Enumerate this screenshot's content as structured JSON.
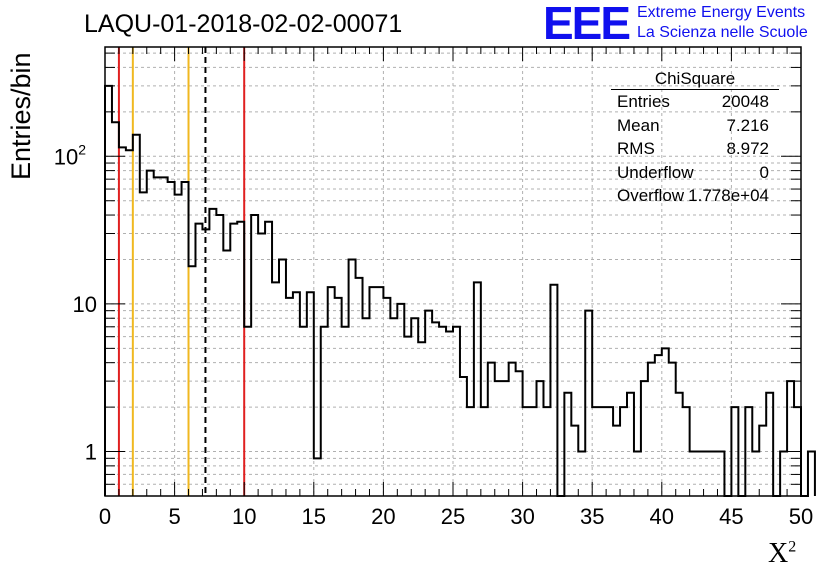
{
  "title": "LAQU-01-2018-02-02-00071",
  "logo": {
    "mark": "EEE",
    "line1": "Extreme Energy Events",
    "line2": "La Scienza nelle Scuole",
    "color": "#1010ee"
  },
  "stats": {
    "title": "ChiSquare",
    "rows": [
      {
        "key": "Entries",
        "value": "20048"
      },
      {
        "key": "Mean",
        "value": "7.216"
      },
      {
        "key": "RMS",
        "value": "8.972"
      },
      {
        "key": "Underflow",
        "value": "0"
      },
      {
        "key": "Overflow",
        "value": "1.778e+04"
      }
    ]
  },
  "chart_data": {
    "type": "histogram",
    "ylabel": "Entries/bin",
    "xlabel": "X",
    "xlabel_sup": "2",
    "xlim": [
      0,
      50
    ],
    "ylim": [
      0.5,
      550
    ],
    "yscale": "log",
    "grid": true,
    "bin_width": 0.5,
    "x_ticks": [
      0,
      5,
      10,
      15,
      20,
      25,
      30,
      35,
      40,
      45,
      50
    ],
    "y_ticks": [
      {
        "value": 1,
        "label": "1"
      },
      {
        "value": 10,
        "label": "10"
      },
      {
        "value": 100,
        "label": "10",
        "sup": "2"
      }
    ],
    "values": [
      300,
      170,
      115,
      110,
      140,
      57,
      80,
      72,
      72,
      67,
      55,
      67,
      18,
      35,
      32,
      44,
      40,
      23,
      35,
      36,
      7,
      40,
      30,
      36,
      14,
      20,
      11,
      12,
      7,
      12,
      0.9,
      7,
      13,
      11,
      7,
      20,
      15,
      8,
      13,
      13,
      11,
      8,
      10,
      6,
      8,
      5.5,
      9,
      7.5,
      7,
      6.5,
      7,
      3.2,
      2,
      14,
      2,
      4,
      3,
      3,
      4,
      3.5,
      2,
      2,
      3,
      2,
      13.5,
      0.5,
      2.5,
      1.5,
      1,
      9,
      2,
      2,
      2,
      1.5,
      2,
      2.5,
      1,
      3,
      4,
      4.5,
      5,
      4,
      2.5,
      2,
      1,
      1,
      1,
      1,
      1,
      0.5,
      2,
      0.5,
      2,
      1,
      1.5,
      2.5,
      0.5,
      1,
      3,
      2,
      0.5,
      1
    ],
    "vlines": [
      {
        "x": 1,
        "color": "#e02020",
        "style": "solid"
      },
      {
        "x": 2,
        "color": "#f0b820",
        "style": "solid"
      },
      {
        "x": 6,
        "color": "#f0b820",
        "style": "solid"
      },
      {
        "x": 7.216,
        "color": "#000000",
        "style": "dashed"
      },
      {
        "x": 10,
        "color": "#e02020",
        "style": "solid"
      }
    ]
  }
}
